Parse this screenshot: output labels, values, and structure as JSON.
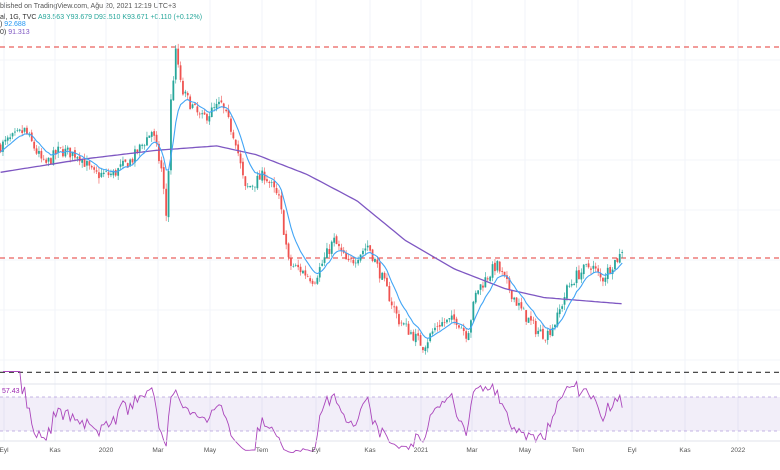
{
  "header": {
    "published": "blished on TradingView.com, Ağu 20, 2021 12:19 UTC+3",
    "symbol": "al, 1G, TVC",
    "open": "A93.563",
    "high": "Y93.679",
    "low": "D93.510",
    "close": "K93.671",
    "change": "+0.110 (+0.12%)",
    "ma1_prefix": ")",
    "ma1_value": "92.688",
    "ma2_prefix": "0)",
    "ma2_value": "91.313"
  },
  "rsi": {
    "label_value": "57.43",
    "upper": 70,
    "lower": 30
  },
  "colors": {
    "up": "#26a69a",
    "down": "#ef5350",
    "ma_fast": "#42a5f5",
    "ma_slow": "#7e57c2",
    "resistance": "#e53935",
    "support": "#333333",
    "rsi": "#ab47bc"
  },
  "chart_data": {
    "type": "candlestick",
    "title": "TVC, 1G",
    "xlabel": "",
    "ylabel": "",
    "x_ticks": [
      "Eyl",
      "Kas",
      "2020",
      "Mar",
      "May",
      "Tem",
      "Eyl",
      "Kas",
      "2021",
      "Mar",
      "May",
      "Tem",
      "Eyl",
      "Kas",
      "2022"
    ],
    "ylim": [
      86.5,
      104
    ],
    "horizontal_lines": [
      {
        "price": 103.0,
        "style": "dashed",
        "color": "red"
      },
      {
        "price": 93.4,
        "style": "dashed",
        "color": "red"
      },
      {
        "price": 88.2,
        "style": "dashed",
        "color": "dark"
      }
    ],
    "close_path": [
      [
        "2019-08-28",
        98.5
      ],
      [
        "2019-09-25",
        99.2
      ],
      [
        "2019-10-18",
        97.6
      ],
      [
        "2019-11-04",
        98.3
      ],
      [
        "2019-11-27",
        98.1
      ],
      [
        "2019-12-14",
        97.2
      ],
      [
        "2020-01-05",
        97.2
      ],
      [
        "2020-01-28",
        97.9
      ],
      [
        "2020-02-20",
        99.2
      ],
      [
        "2020-03-02",
        97.4
      ],
      [
        "2020-03-08",
        95.1
      ],
      [
        "2020-03-13",
        100.6
      ],
      [
        "2020-03-19",
        102.9
      ],
      [
        "2020-03-25",
        101.0
      ],
      [
        "2020-04-05",
        100.4
      ],
      [
        "2020-04-17",
        99.7
      ],
      [
        "2020-05-10",
        100.4
      ],
      [
        "2020-05-27",
        98.8
      ],
      [
        "2020-06-07",
        96.5
      ],
      [
        "2020-06-30",
        97.2
      ],
      [
        "2020-07-17",
        96.0
      ],
      [
        "2020-07-28",
        93.1
      ],
      [
        "2020-08-09",
        92.9
      ],
      [
        "2020-08-26",
        92.4
      ],
      [
        "2020-09-18",
        94.2
      ],
      [
        "2020-10-05",
        93.1
      ],
      [
        "2020-10-28",
        94.0
      ],
      [
        "2020-11-14",
        92.4
      ],
      [
        "2020-12-02",
        90.6
      ],
      [
        "2020-12-19",
        89.9
      ],
      [
        "2020-12-31",
        89.4
      ],
      [
        "2021-01-17",
        90.4
      ],
      [
        "2021-02-08",
        90.6
      ],
      [
        "2021-02-20",
        89.9
      ],
      [
        "2021-03-03",
        91.9
      ],
      [
        "2021-03-26",
        93.1
      ],
      [
        "2021-04-07",
        92.2
      ],
      [
        "2021-04-24",
        91.0
      ],
      [
        "2021-05-12",
        90.1
      ],
      [
        "2021-05-23",
        89.9
      ],
      [
        "2021-06-04",
        90.6
      ],
      [
        "2021-06-15",
        91.9
      ],
      [
        "2021-06-27",
        92.6
      ],
      [
        "2021-07-14",
        93.1
      ],
      [
        "2021-07-26",
        92.4
      ],
      [
        "2021-08-07",
        93.1
      ],
      [
        "2021-08-20",
        93.671
      ]
    ],
    "ma_slow_path": [
      [
        "2019-08-28",
        97.3
      ],
      [
        "2019-12-02",
        97.9
      ],
      [
        "2020-02-25",
        98.3
      ],
      [
        "2020-05-05",
        98.5
      ],
      [
        "2020-06-20",
        98.1
      ],
      [
        "2020-08-18",
        97.2
      ],
      [
        "2020-10-15",
        96.0
      ],
      [
        "2020-12-10",
        94.2
      ],
      [
        "2021-02-05",
        92.9
      ],
      [
        "2021-04-05",
        92.0
      ],
      [
        "2021-05-20",
        91.6
      ],
      [
        "2021-08-20",
        91.313
      ]
    ],
    "ma_fast_last": 92.688,
    "rsi_last": 57.43
  }
}
